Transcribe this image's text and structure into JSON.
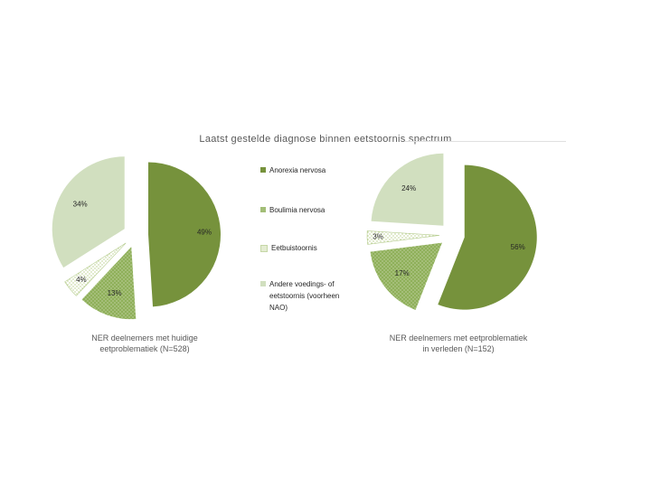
{
  "chart_data": [
    {
      "type": "pie",
      "title": "Laatst gestelde diagnose binnen eetstoornis spectrum",
      "caption_line1": "NER deelnemers met huidige",
      "caption_line2": "eetproblematiek (N=528)",
      "categories": [
        "Anorexia nervosa",
        "Boulimia nervosa",
        "Eetbuistoornis",
        "Andere voedings- of eetstoornis (voorheen NAO)"
      ],
      "values": [
        49,
        13,
        4,
        34
      ],
      "labels": [
        "49%",
        "13%",
        "4%",
        "34%"
      ],
      "exploded": true
    },
    {
      "type": "pie",
      "caption_line1": "NER deelnemers met  eetproblematiek",
      "caption_line2": "in verleden (N=152)",
      "categories": [
        "Anorexia nervosa",
        "Boulimia nervosa",
        "Eetbuistoornis",
        "Andere voedings- of eetstoornis (voorheen NAO)"
      ],
      "values": [
        56,
        17,
        3,
        24
      ],
      "labels": [
        "56%",
        "17%",
        "3%",
        "24%"
      ],
      "exploded": true
    }
  ],
  "legend": [
    {
      "label": "Anorexia nervosa",
      "color": "#76923c",
      "pattern": "solid"
    },
    {
      "label": "Boulimia nervosa",
      "color": "#8fb05a",
      "pattern": "dots"
    },
    {
      "label": "Eetbuistoornis",
      "color": "#ffffff",
      "pattern": "light-dots"
    },
    {
      "label": "Andere voedings- of eetstoornis (voorheen NAO)",
      "color": "#d1dfbf",
      "pattern": "solid"
    }
  ],
  "colors": {
    "anorexia": "#76923c",
    "boulimia": "#8fb05a",
    "eetbui": "#ffffff",
    "andere": "#d1dfbf"
  }
}
